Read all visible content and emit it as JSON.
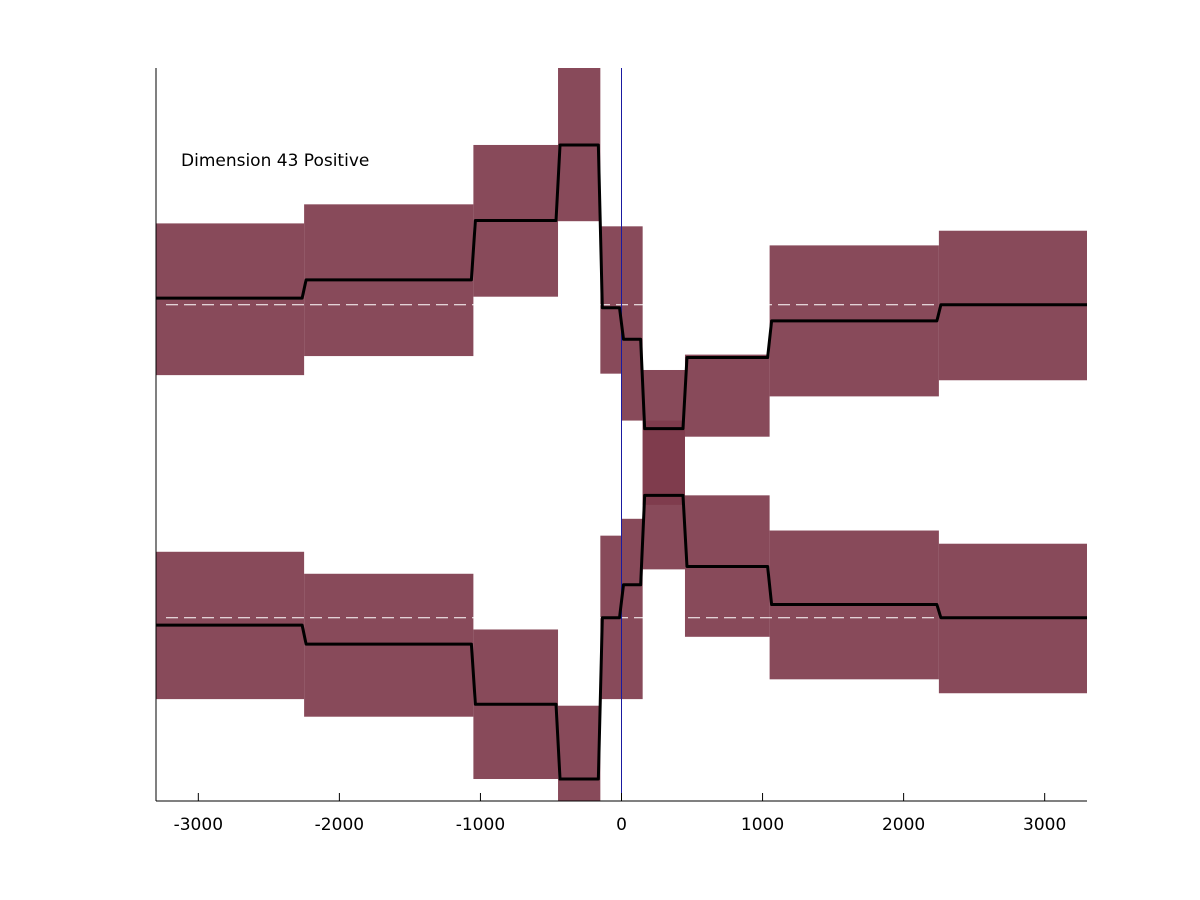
{
  "chart_data": {
    "type": "line",
    "annotation": "Dimension 43 Positive",
    "xlim": [
      -3300,
      3300
    ],
    "x_ticks": [
      -3000,
      -2000,
      -1000,
      0,
      1000,
      2000,
      3000
    ],
    "x_tick_labels": [
      "-3000",
      "-2000",
      "-1000",
      "0",
      "1000",
      "2000",
      "3000"
    ],
    "ylim": [
      0,
      1
    ],
    "y_ticks_shown": false,
    "grid": false,
    "band_color": "#7e3b4c",
    "line_color": "#000000",
    "zero_line_color": "#1a1aa0",
    "dashed_line_color": "#ffffff",
    "top_trace": {
      "baseline": 0.677,
      "steps": [
        {
          "x0": -3300,
          "x1": -2250,
          "y": 0.686,
          "lo": 0.581,
          "hi": 0.788
        },
        {
          "x0": -2250,
          "x1": -1050,
          "y": 0.711,
          "lo": 0.607,
          "hi": 0.814
        },
        {
          "x0": -1050,
          "x1": -450,
          "y": 0.792,
          "lo": 0.688,
          "hi": 0.895
        },
        {
          "x0": -450,
          "x1": -150,
          "y": 0.895,
          "lo": 0.791,
          "hi": 1.0
        },
        {
          "x0": -150,
          "x1": 0,
          "y": 0.673,
          "lo": 0.583,
          "hi": 0.784
        },
        {
          "x0": 0,
          "x1": 150,
          "y": 0.63,
          "lo": 0.519,
          "hi": 0.784
        },
        {
          "x0": 150,
          "x1": 450,
          "y": 0.508,
          "lo": 0.404,
          "hi": 0.588
        },
        {
          "x0": 450,
          "x1": 1050,
          "y": 0.605,
          "lo": 0.497,
          "hi": 0.609
        },
        {
          "x0": 1050,
          "x1": 2250,
          "y": 0.655,
          "lo": 0.552,
          "hi": 0.758
        },
        {
          "x0": 2250,
          "x1": 3300,
          "y": 0.677,
          "lo": 0.574,
          "hi": 0.778
        }
      ]
    },
    "bottom_trace": {
      "baseline": 0.25,
      "steps": [
        {
          "x0": -3300,
          "x1": -2250,
          "y": 0.24,
          "lo": 0.139,
          "hi": 0.34
        },
        {
          "x0": -2250,
          "x1": -1050,
          "y": 0.214,
          "lo": 0.115,
          "hi": 0.31
        },
        {
          "x0": -1050,
          "x1": -450,
          "y": 0.132,
          "lo": 0.03,
          "hi": 0.234
        },
        {
          "x0": -450,
          "x1": -150,
          "y": 0.03,
          "lo": 0.0,
          "hi": 0.13
        },
        {
          "x0": -150,
          "x1": 0,
          "y": 0.25,
          "lo": 0.139,
          "hi": 0.362
        },
        {
          "x0": 0,
          "x1": 150,
          "y": 0.295,
          "lo": 0.139,
          "hi": 0.385
        },
        {
          "x0": 150,
          "x1": 450,
          "y": 0.417,
          "lo": 0.316,
          "hi": 0.519
        },
        {
          "x0": 450,
          "x1": 1050,
          "y": 0.32,
          "lo": 0.224,
          "hi": 0.417
        },
        {
          "x0": 1050,
          "x1": 2250,
          "y": 0.268,
          "lo": 0.166,
          "hi": 0.369
        },
        {
          "x0": 2250,
          "x1": 3300,
          "y": 0.25,
          "lo": 0.147,
          "hi": 0.351
        }
      ]
    }
  }
}
